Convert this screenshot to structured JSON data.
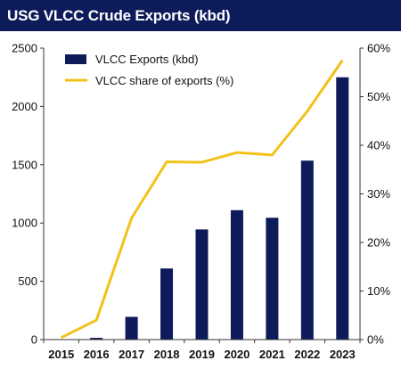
{
  "title": "USG VLCC Crude Exports (kbd)",
  "colors": {
    "title_bg": "#0d1b5b",
    "title_text": "#ffffff",
    "bar": "#0d1b5b",
    "line": "#f2c21b",
    "axis": "#333333"
  },
  "chart_data": {
    "type": "bar",
    "categories": [
      "2015",
      "2016",
      "2017",
      "2018",
      "2019",
      "2020",
      "2021",
      "2022",
      "2023"
    ],
    "series": [
      {
        "name": "VLCC Exports (kbd)",
        "type": "bar",
        "axis": "left",
        "values": [
          0,
          15,
          195,
          610,
          945,
          1110,
          1045,
          1535,
          2250
        ]
      },
      {
        "name": "VLCC share of exports (%)",
        "type": "line",
        "axis": "right",
        "values": [
          0.4,
          4.0,
          25.0,
          36.6,
          36.5,
          38.5,
          38.0,
          47.0,
          57.5
        ]
      }
    ],
    "y_left": {
      "min": 0,
      "max": 2500,
      "ticks": [
        "0",
        "500",
        "1000",
        "1500",
        "2000",
        "2500"
      ]
    },
    "y_right": {
      "min": 0,
      "max": 60,
      "ticks": [
        "0%",
        "10%",
        "20%",
        "30%",
        "40%",
        "50%",
        "60%"
      ]
    },
    "legend_position": "top-left",
    "grid": false
  }
}
